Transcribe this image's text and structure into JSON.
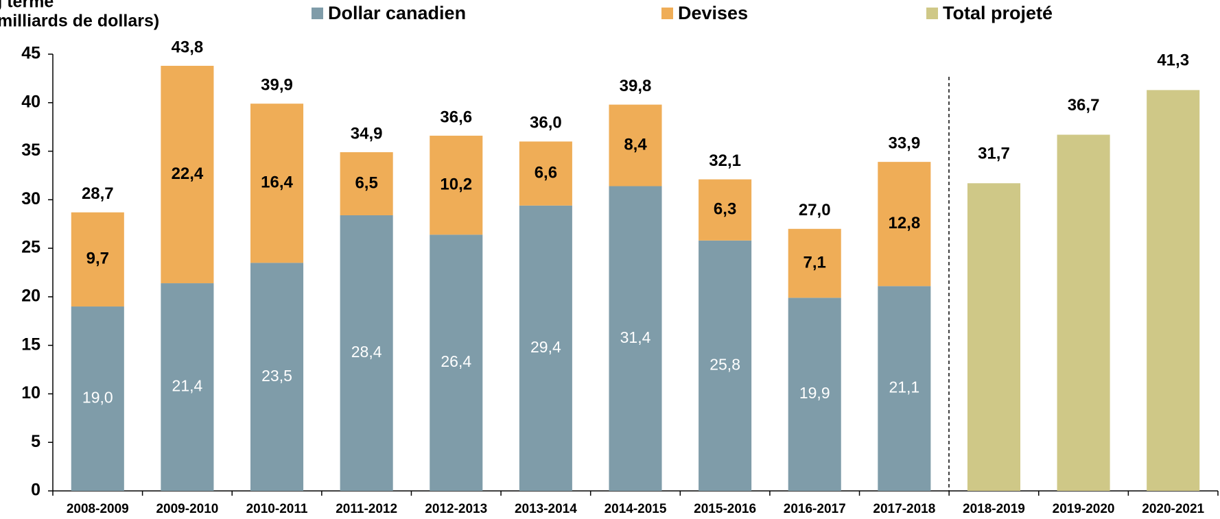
{
  "chart_data": {
    "type": "stacked-bar",
    "y_label_lines": [
      "g terme",
      "milliards de dollars)"
    ],
    "categories": [
      "2008-2009",
      "2009-2010",
      "2010-2011",
      "2011-2012",
      "2012-2013",
      "2013-2014",
      "2014-2015",
      "2015-2016",
      "2016-2017",
      "2017-2018",
      "2018-2019",
      "2019-2020",
      "2020-2021"
    ],
    "series": [
      {
        "name": "Dollar canadien",
        "color": "#7f9ca9",
        "values": [
          19.0,
          21.4,
          23.5,
          28.4,
          26.4,
          29.4,
          31.4,
          25.8,
          19.9,
          21.1,
          null,
          null,
          null
        ],
        "value_labels": [
          "19,0",
          "21,4",
          "23,5",
          "28,4",
          "26,4",
          "29,4",
          "31,4",
          "25,8",
          "19,9",
          "21,1",
          null,
          null,
          null
        ]
      },
      {
        "name": "Devises",
        "color": "#efad57",
        "values": [
          9.7,
          22.4,
          16.4,
          6.5,
          10.2,
          6.6,
          8.4,
          6.3,
          7.1,
          12.8,
          null,
          null,
          null
        ],
        "value_labels": [
          "9,7",
          "22,4",
          "16,4",
          "6,5",
          "10,2",
          "6,6",
          "8,4",
          "6,3",
          "7,1",
          "12,8",
          null,
          null,
          null
        ]
      },
      {
        "name": "Total projeté",
        "color": "#cfc887",
        "values": [
          null,
          null,
          null,
          null,
          null,
          null,
          null,
          null,
          null,
          null,
          31.7,
          36.7,
          41.3
        ],
        "value_labels": [
          null,
          null,
          null,
          null,
          null,
          null,
          null,
          null,
          null,
          null,
          "31,7",
          "36,7",
          "41,3"
        ]
      }
    ],
    "totals": [
      28.7,
      43.8,
      39.9,
      34.9,
      36.6,
      36.0,
      39.8,
      32.1,
      27.0,
      33.9,
      null,
      null,
      null
    ],
    "total_labels": [
      "28,7",
      "43,8",
      "39,9",
      "34,9",
      "36,6",
      "36,0",
      "39,8",
      "32,1",
      "27,0",
      "33,9",
      null,
      null,
      null
    ],
    "ylim": [
      0,
      45
    ],
    "yticks": [
      0,
      5,
      10,
      15,
      20,
      25,
      30,
      35,
      40,
      45
    ],
    "grid": false
  }
}
